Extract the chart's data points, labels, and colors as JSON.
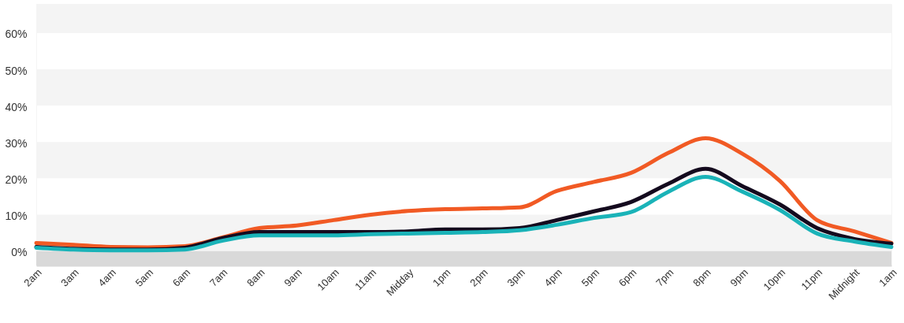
{
  "chart_data": {
    "type": "line",
    "categories": [
      "2am",
      "3am",
      "4am",
      "5am",
      "6am",
      "7am",
      "8am",
      "9am",
      "10am",
      "11am",
      "Midday",
      "1pm",
      "2pm",
      "3pm",
      "4pm",
      "5pm",
      "6pm",
      "7pm",
      "8pm",
      "9pm",
      "10pm",
      "11pm",
      "Midnight",
      "1am"
    ],
    "series": [
      {
        "color": "#f15a24",
        "values": [
          2.2,
          1.7,
          1.1,
          1.0,
          1.3,
          3.7,
          6.3,
          7.0,
          8.5,
          10.0,
          11.0,
          11.5,
          11.7,
          12.0,
          16.5,
          19.0,
          21.5,
          27.0,
          31.0,
          26.7,
          19.3,
          8.5,
          5.4,
          2.2
        ]
      },
      {
        "color": "#140a1e",
        "values": [
          1.1,
          0.6,
          0.4,
          0.4,
          0.9,
          3.5,
          5.2,
          5.2,
          5.2,
          5.2,
          5.4,
          5.9,
          5.9,
          6.3,
          8.5,
          10.9,
          13.5,
          18.5,
          22.6,
          17.8,
          12.8,
          6.3,
          3.3,
          2.0
        ]
      },
      {
        "color": "#1ab3b8",
        "values": [
          0.9,
          0.4,
          0.2,
          0.2,
          0.4,
          2.8,
          4.3,
          4.3,
          4.3,
          4.6,
          4.8,
          5.0,
          5.2,
          5.7,
          7.2,
          9.1,
          10.7,
          16.3,
          20.4,
          16.3,
          11.3,
          4.8,
          2.6,
          1.1
        ]
      }
    ],
    "ylim": [
      -4,
      68
    ],
    "yticks": [
      {
        "value": 0,
        "label": "0%"
      },
      {
        "value": 10,
        "label": "10%"
      },
      {
        "value": 20,
        "label": "20%"
      },
      {
        "value": 30,
        "label": "30%"
      },
      {
        "value": 40,
        "label": "40%"
      },
      {
        "value": 50,
        "label": "50%"
      },
      {
        "value": 60,
        "label": "60%"
      }
    ],
    "bands": [
      {
        "axis": "y",
        "from": -4,
        "to": 0,
        "color": "#d9d9d9"
      },
      {
        "axis": "y",
        "from": 0,
        "to": 10,
        "color": "#f4f4f4"
      },
      {
        "axis": "y",
        "from": 20,
        "to": 30,
        "color": "#f4f4f4"
      },
      {
        "axis": "y",
        "from": 40,
        "to": 50,
        "color": "#f4f4f4"
      },
      {
        "axis": "y",
        "from": 60,
        "to": 68,
        "color": "#f4f4f4"
      }
    ],
    "grid": false,
    "marker": "none",
    "line_style": "solid"
  }
}
